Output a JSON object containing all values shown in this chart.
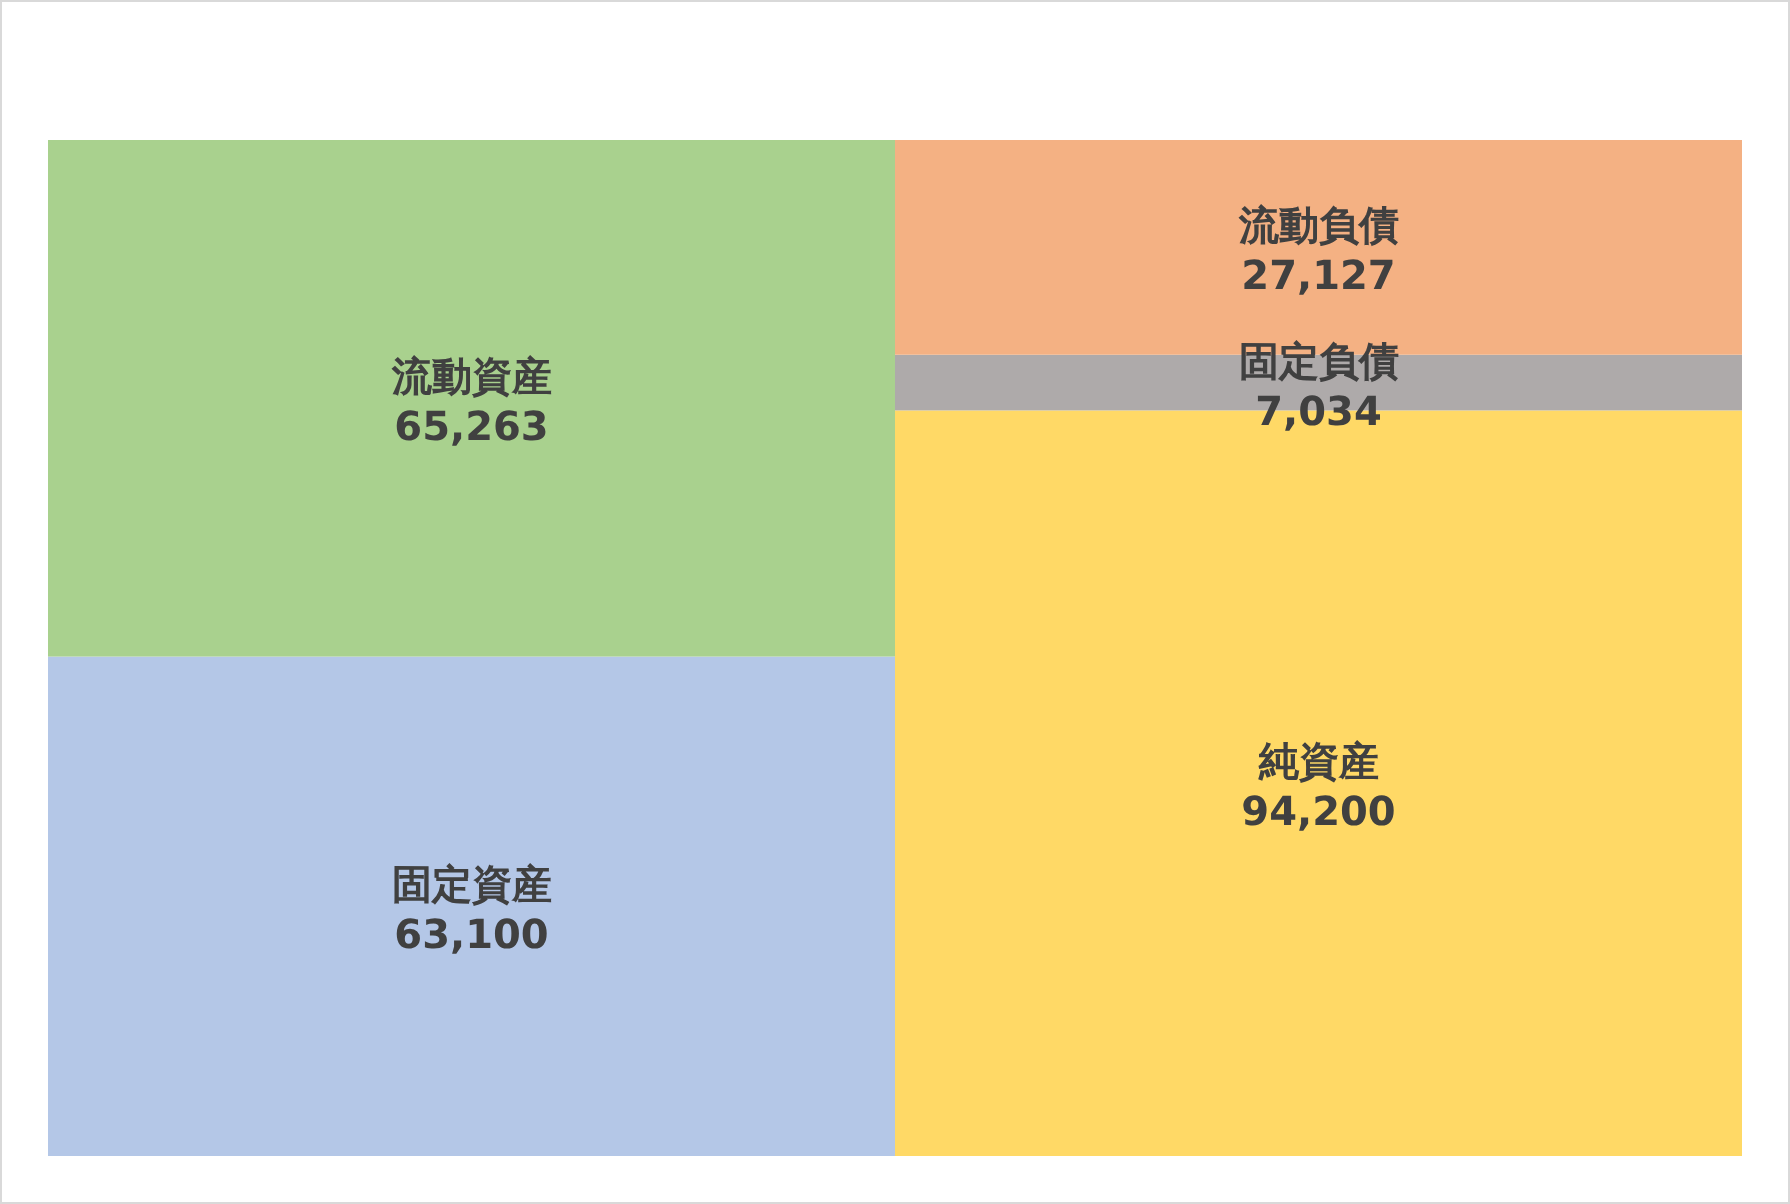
{
  "chart_data": {
    "type": "bar",
    "stacked": true,
    "categories": [
      null,
      null
    ],
    "series": [
      {
        "name": "固定資産",
        "color": "#b4c7e7",
        "values": [
          63100,
          null
        ],
        "value_labels": [
          "63,100",
          null
        ]
      },
      {
        "name": "流動資産",
        "color": "#a9d18e",
        "values": [
          65263,
          null
        ],
        "value_labels": [
          "65,263",
          null
        ]
      },
      {
        "name": "純資産",
        "color": "#ffd966",
        "values": [
          null,
          94200
        ],
        "value_labels": [
          null,
          "94,200"
        ]
      },
      {
        "name": "固定負債",
        "color": "#aeaaaa",
        "values": [
          null,
          7034
        ],
        "value_labels": [
          null,
          "7,034"
        ]
      },
      {
        "name": "流動負債",
        "color": "#f4b183",
        "values": [
          null,
          27127
        ],
        "value_labels": [
          null,
          "27,127"
        ]
      }
    ]
  }
}
